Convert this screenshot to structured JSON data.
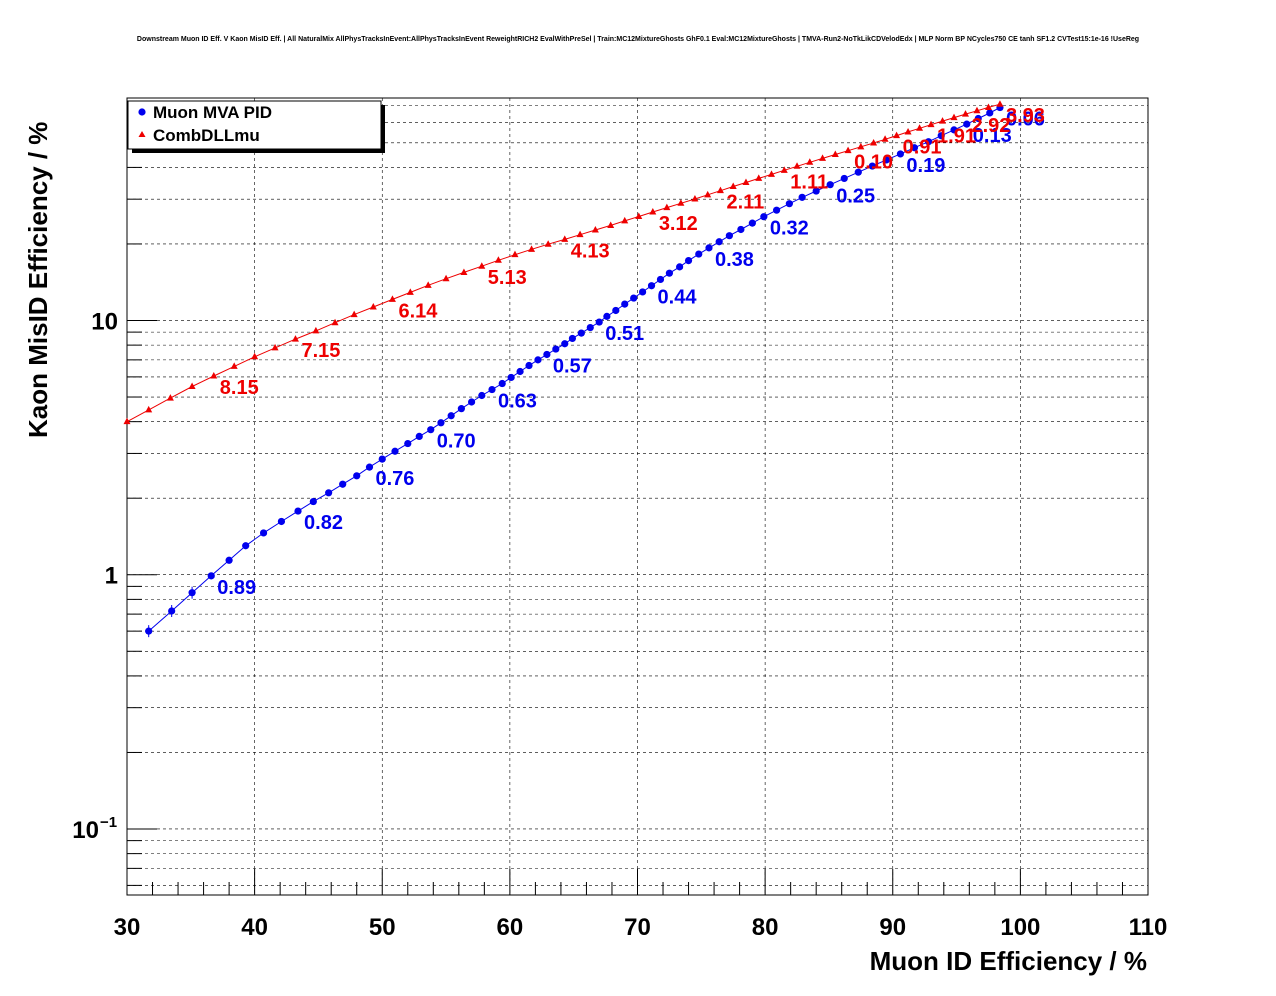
{
  "chart_data": {
    "type": "line",
    "title": "Downstream Muon ID Eff. V Kaon MisID Eff. | All NaturalMix AllPhysTracksInEvent:AllPhysTracksInEvent ReweightRICH2 EvalWithPreSel | Train:MC12MixtureGhosts GhF0.1 Eval:MC12MixtureGhosts | TMVA-Run2-NoTkLikCDVelodEdx | MLP Norm BP NCycles750 CE tanh SF1.2 CVTest15:1e-16 !UseReg",
    "xlabel": "Muon ID Efficiency / %",
    "ylabel": "Kaon MisID Efficiency / %",
    "xlim": [
      30,
      110
    ],
    "ylim": [
      0.055,
      75
    ],
    "yscale": "log",
    "grid": true,
    "legend_position": "top-left",
    "x_ticks": [
      "30",
      "40",
      "50",
      "60",
      "70",
      "80",
      "90",
      "100",
      "110"
    ],
    "y_ticks": [
      "10",
      "1",
      "10"
    ],
    "y_tick_exponent": "−1",
    "series": [
      {
        "name": "Muon MVA PID",
        "color": "#0000ee",
        "marker": "circle",
        "x": [
          31.7,
          33.5,
          35.1,
          36.6,
          38.0,
          39.3,
          40.7,
          42.1,
          43.4,
          44.6,
          45.8,
          46.9,
          48.0,
          49.0,
          50.0,
          51.0,
          52.0,
          52.9,
          53.8,
          54.6,
          55.4,
          56.2,
          57.0,
          57.8,
          58.6,
          59.4,
          60.1,
          60.8,
          61.5,
          62.2,
          62.9,
          63.6,
          64.3,
          64.9,
          65.6,
          66.3,
          67.0,
          67.6,
          68.3,
          69.0,
          69.7,
          70.4,
          71.1,
          71.8,
          72.5,
          73.3,
          74.0,
          74.8,
          75.6,
          76.4,
          77.2,
          78.1,
          79.0,
          79.9,
          80.9,
          81.9,
          82.9,
          84.0,
          85.1,
          86.2,
          87.3,
          88.4,
          89.5,
          90.6,
          91.7,
          92.8,
          93.8,
          94.8,
          95.8,
          96.7,
          97.6,
          98.4
        ],
        "y": [
          0.6,
          0.72,
          0.85,
          0.99,
          1.14,
          1.3,
          1.46,
          1.62,
          1.78,
          1.94,
          2.1,
          2.27,
          2.45,
          2.65,
          2.85,
          3.06,
          3.28,
          3.5,
          3.72,
          3.96,
          4.22,
          4.5,
          4.78,
          5.07,
          5.35,
          5.65,
          5.97,
          6.3,
          6.65,
          7.0,
          7.35,
          7.72,
          8.1,
          8.5,
          8.92,
          9.38,
          9.86,
          10.38,
          10.95,
          11.6,
          12.25,
          12.95,
          13.7,
          14.5,
          15.35,
          16.25,
          17.2,
          18.25,
          19.3,
          20.4,
          21.55,
          22.8,
          24.15,
          25.6,
          27.15,
          28.8,
          30.5,
          32.3,
          34.2,
          36.2,
          38.3,
          40.5,
          42.8,
          45.2,
          47.8,
          50.5,
          53.3,
          56.2,
          59.2,
          62.3,
          65.5,
          68.8
        ],
        "labels": [
          {
            "x": 36.6,
            "y": 0.99,
            "text": "0.89"
          },
          {
            "x": 43.4,
            "y": 1.78,
            "text": "0.82"
          },
          {
            "x": 49.0,
            "y": 2.65,
            "text": "0.76"
          },
          {
            "x": 53.8,
            "y": 3.72,
            "text": "0.70"
          },
          {
            "x": 58.6,
            "y": 5.35,
            "text": "0.63"
          },
          {
            "x": 62.9,
            "y": 7.35,
            "text": "0.57"
          },
          {
            "x": 67.0,
            "y": 9.86,
            "text": "0.51"
          },
          {
            "x": 71.1,
            "y": 13.7,
            "text": "0.44"
          },
          {
            "x": 75.6,
            "y": 19.3,
            "text": "0.38"
          },
          {
            "x": 79.9,
            "y": 25.6,
            "text": "0.32"
          },
          {
            "x": 85.1,
            "y": 34.2,
            "text": "0.25"
          },
          {
            "x": 90.6,
            "y": 45.2,
            "text": "0.19"
          },
          {
            "x": 95.8,
            "y": 59.2,
            "text": "0.13"
          },
          {
            "x": 98.4,
            "y": 68.8,
            "text": "0.06"
          }
        ]
      },
      {
        "name": "CombDLLmu",
        "color": "#ee0000",
        "marker": "triangle",
        "x": [
          30.0,
          31.7,
          33.4,
          35.1,
          36.8,
          38.4,
          40.0,
          41.6,
          43.2,
          44.8,
          46.3,
          47.8,
          49.3,
          50.8,
          52.2,
          53.6,
          55.0,
          56.4,
          57.8,
          59.1,
          60.4,
          61.7,
          63.0,
          64.3,
          65.5,
          66.7,
          67.9,
          69.0,
          70.1,
          71.2,
          72.3,
          73.4,
          74.5,
          75.5,
          76.5,
          77.5,
          78.5,
          79.5,
          80.5,
          81.5,
          82.5,
          83.5,
          84.5,
          85.5,
          86.5,
          87.5,
          88.5,
          89.4,
          90.3,
          91.2,
          92.1,
          93.0,
          93.9,
          94.8,
          95.7,
          96.6,
          97.5,
          98.4
        ],
        "y": [
          4.0,
          4.45,
          4.95,
          5.5,
          6.05,
          6.6,
          7.2,
          7.8,
          8.45,
          9.1,
          9.8,
          10.55,
          11.3,
          12.1,
          12.9,
          13.75,
          14.6,
          15.45,
          16.35,
          17.25,
          18.15,
          19.05,
          19.95,
          20.85,
          21.75,
          22.7,
          23.65,
          24.65,
          25.65,
          26.7,
          27.8,
          28.9,
          30.05,
          31.2,
          32.4,
          33.65,
          34.9,
          36.2,
          37.55,
          38.95,
          40.4,
          41.9,
          43.4,
          44.95,
          46.55,
          48.2,
          49.9,
          51.6,
          53.35,
          55.15,
          57.0,
          58.9,
          60.85,
          62.8,
          64.8,
          66.8,
          68.85,
          70.9
        ],
        "labels": [
          {
            "x": 36.8,
            "y": 6.05,
            "text": "8.15"
          },
          {
            "x": 43.2,
            "y": 8.45,
            "text": "7.15"
          },
          {
            "x": 50.8,
            "y": 12.1,
            "text": "6.14"
          },
          {
            "x": 57.8,
            "y": 16.35,
            "text": "5.13"
          },
          {
            "x": 64.3,
            "y": 20.85,
            "text": "4.13"
          },
          {
            "x": 71.2,
            "y": 26.7,
            "text": "3.12"
          },
          {
            "x": 76.5,
            "y": 32.4,
            "text": "2.11"
          },
          {
            "x": 81.5,
            "y": 38.95,
            "text": "1.11"
          },
          {
            "x": 86.5,
            "y": 46.55,
            "text": "0.10"
          },
          {
            "x": 90.3,
            "y": 53.35,
            "text": "0.91"
          },
          {
            "x": 93.0,
            "y": 58.9,
            "text": "1.91"
          },
          {
            "x": 95.7,
            "y": 64.8,
            "text": "2.92"
          },
          {
            "x": 98.4,
            "y": 70.9,
            "text": "3.93"
          }
        ]
      }
    ]
  }
}
